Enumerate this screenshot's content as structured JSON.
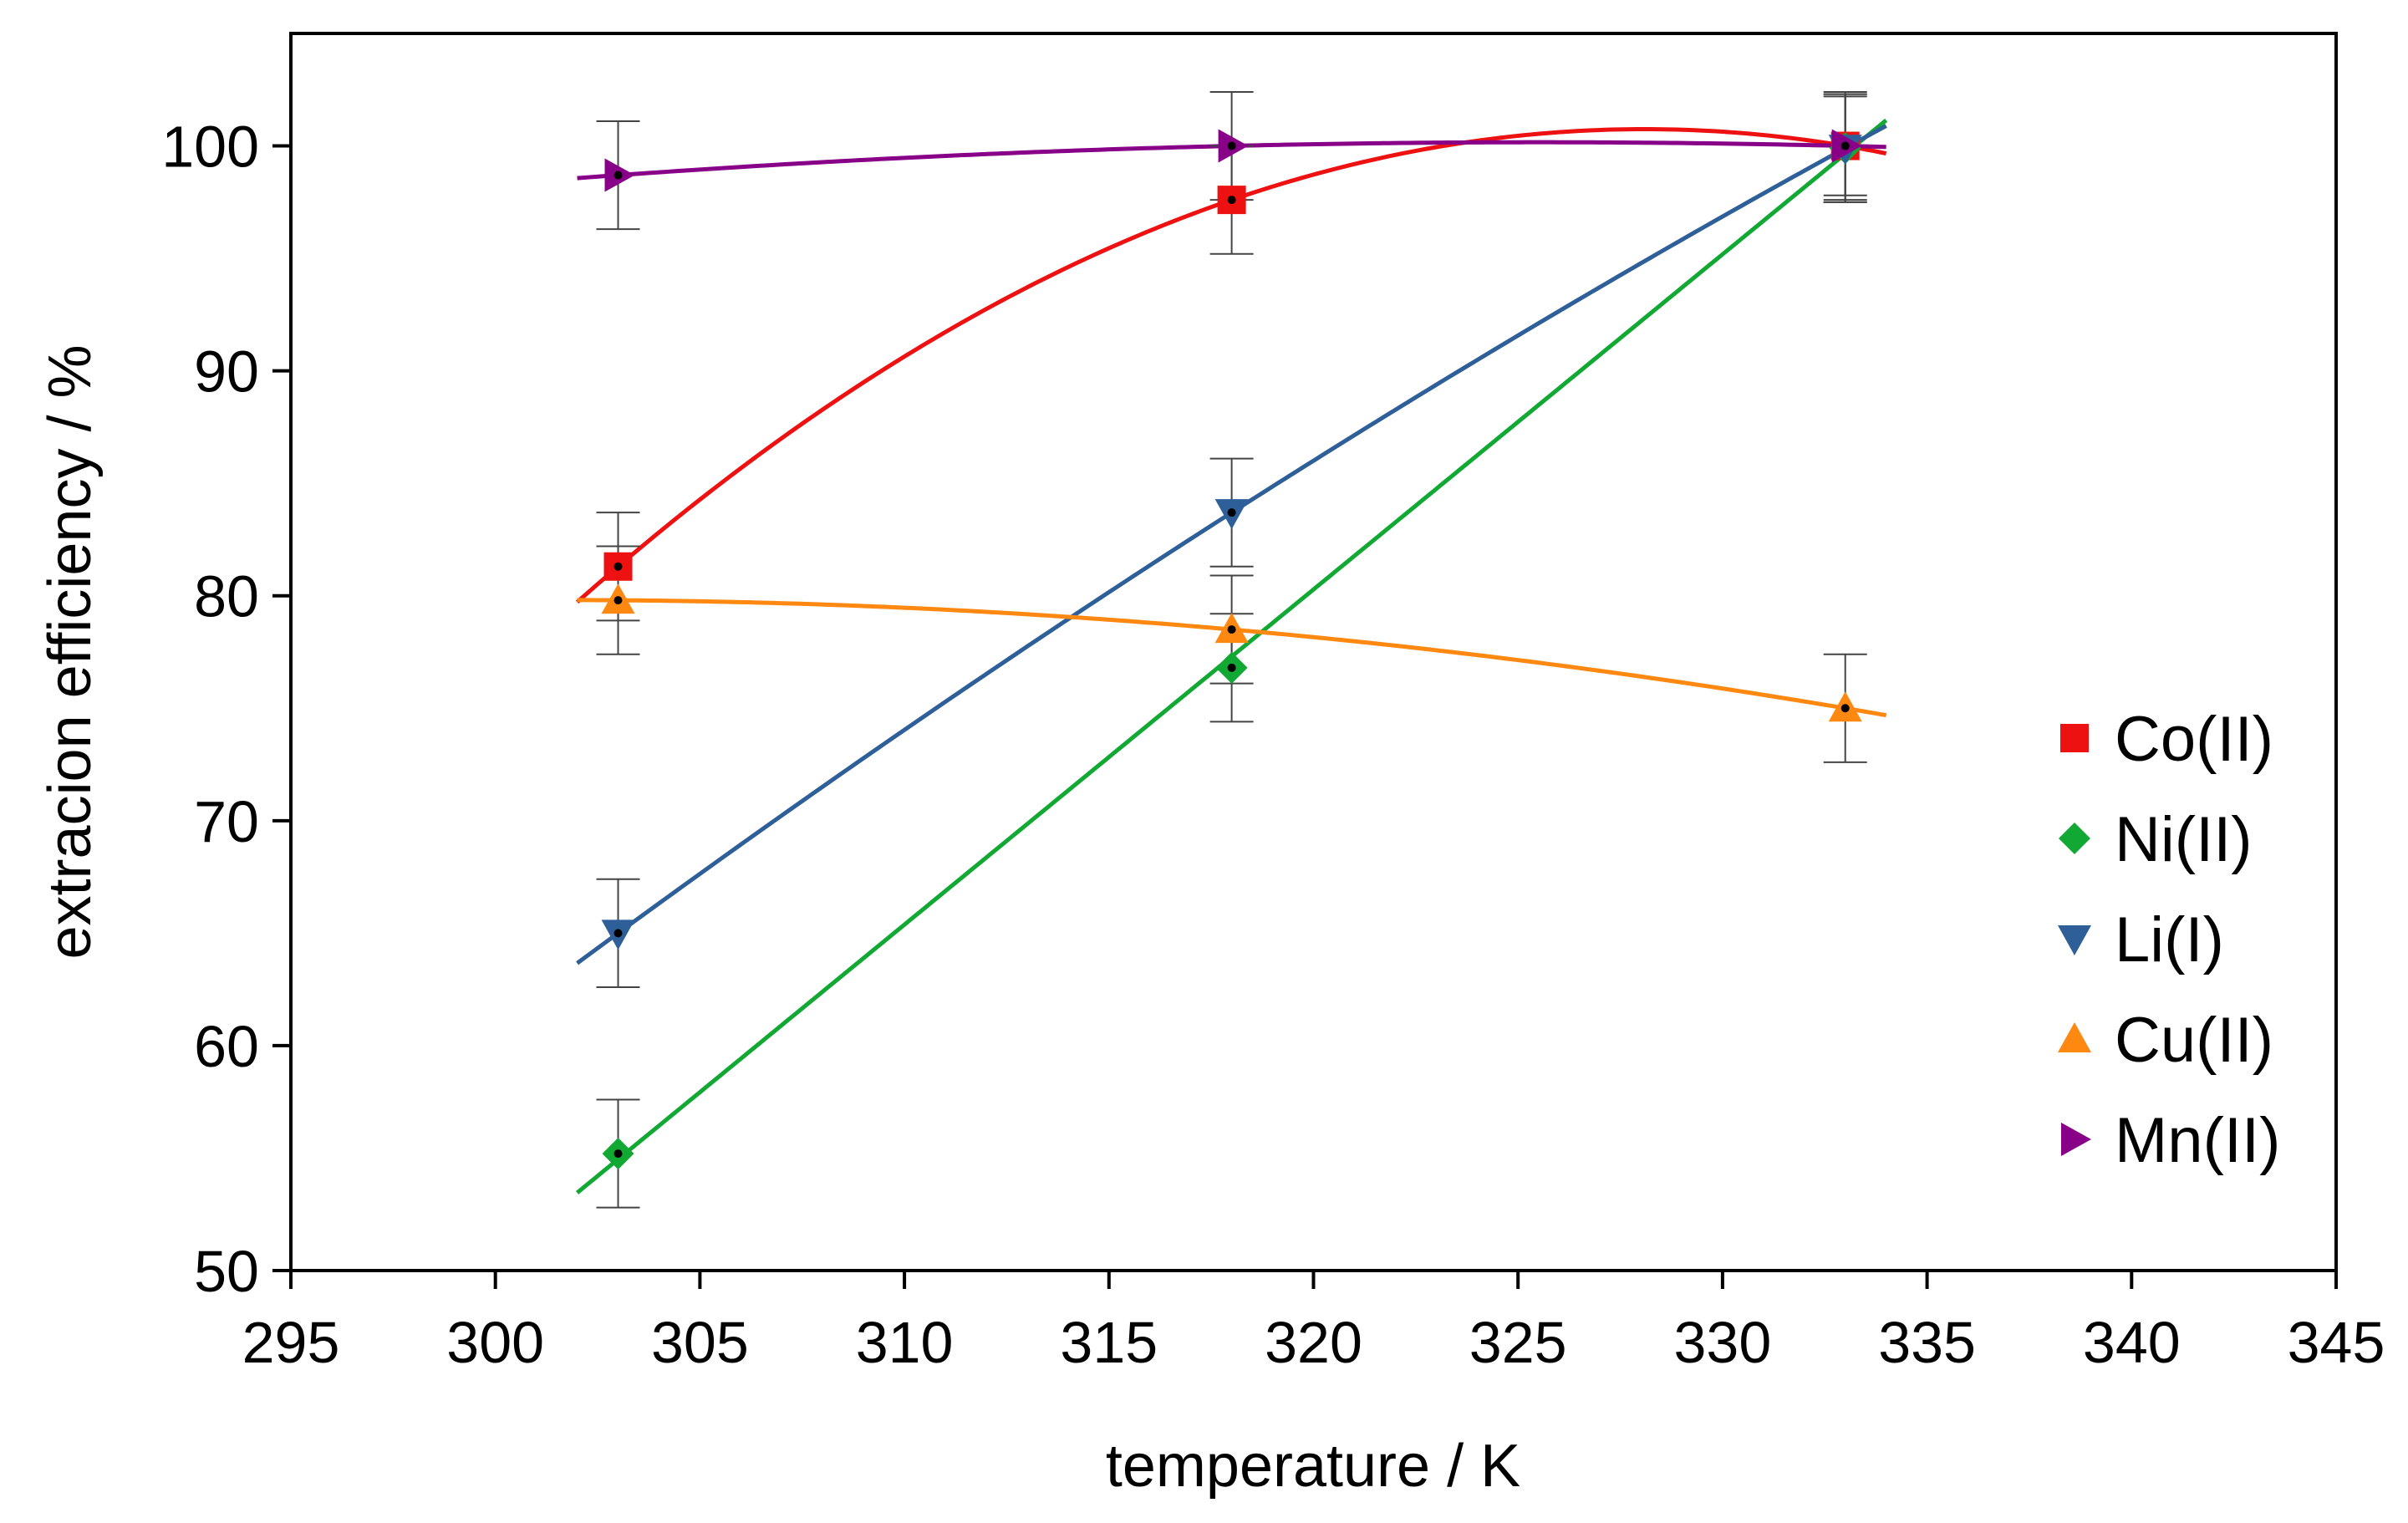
{
  "chart_data": {
    "type": "scatter",
    "title": "",
    "xlabel": "temperature / K",
    "ylabel": "extracion efficiency / %",
    "xlim": [
      295,
      345
    ],
    "ylim": [
      50,
      105
    ],
    "xticks": [
      295,
      300,
      305,
      310,
      315,
      320,
      325,
      330,
      335,
      340,
      345
    ],
    "yticks": [
      50,
      60,
      70,
      80,
      90,
      100
    ],
    "grid": false,
    "legend_position": "right",
    "series": [
      {
        "name": "Co(II)",
        "color": "#ee1111",
        "marker": "square",
        "x": [
          303,
          318,
          333
        ],
        "y": [
          81.3,
          97.6,
          100.0
        ],
        "err": [
          2.4,
          2.4,
          2.2
        ],
        "fit": {
          "kind": "quadratic",
          "x_range": [
            302,
            334
          ]
        }
      },
      {
        "name": "Ni(II)",
        "color": "#11a833",
        "marker": "diamond",
        "x": [
          303,
          318,
          333
        ],
        "y": [
          55.2,
          76.8,
          99.9
        ],
        "err": [
          2.4,
          2.4,
          2.4
        ],
        "fit": {
          "kind": "linear",
          "x_range": [
            302,
            334
          ]
        }
      },
      {
        "name": "Li(I)",
        "color": "#2e5f99",
        "marker": "triangle-down",
        "x": [
          303,
          318,
          333
        ],
        "y": [
          65.0,
          83.7,
          99.9
        ],
        "err": [
          2.4,
          2.4,
          2.4
        ],
        "fit": {
          "kind": "quadratic",
          "x_range": [
            302,
            334
          ]
        }
      },
      {
        "name": "Cu(II)",
        "color": "#ff8811",
        "marker": "triangle-up",
        "x": [
          303,
          318,
          333
        ],
        "y": [
          79.8,
          78.5,
          75.0
        ],
        "err": [
          2.4,
          2.4,
          2.4
        ],
        "fit": {
          "kind": "quadratic",
          "x_range": [
            302,
            334
          ]
        }
      },
      {
        "name": "Mn(II)",
        "color": "#880088",
        "marker": "triangle-right",
        "x": [
          303,
          318,
          333
        ],
        "y": [
          98.7,
          100.0,
          100.0
        ],
        "err": [
          2.4,
          2.4,
          2.4
        ],
        "fit": {
          "kind": "quadratic",
          "x_range": [
            302,
            334
          ]
        }
      }
    ]
  }
}
